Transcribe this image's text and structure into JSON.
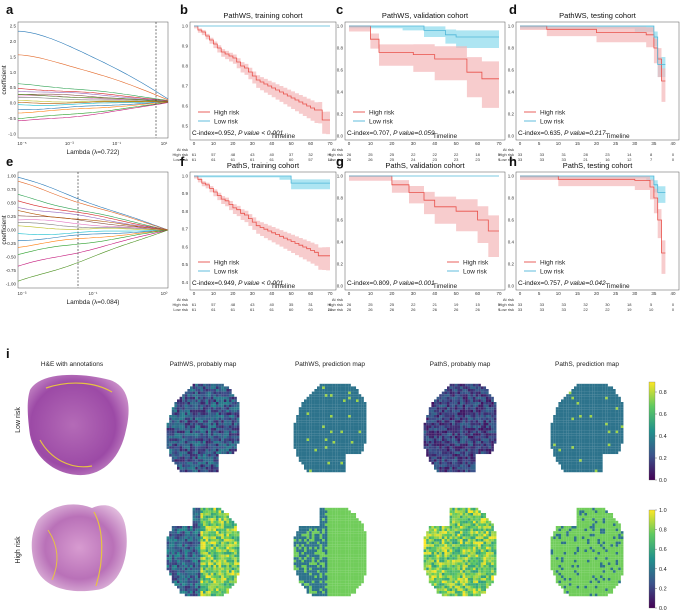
{
  "colors": {
    "high": "#e8504a",
    "high_band": "#f4b6b8",
    "low": "#4fb6d8",
    "low_band": "#9fe0f0",
    "frame": "#555555"
  },
  "lasso": [
    {
      "label": "a",
      "xlabel": "Lambda (λ=0.722)",
      "ylabel": "coefficient",
      "xticks": [
        "10⁻⁵",
        "10⁻³",
        "10⁻¹",
        "10¹"
      ],
      "yticks": [
        "2.5",
        "2.0",
        "1.5",
        "1.0",
        "0.5",
        "0.0",
        "-0.5",
        "-1.0"
      ],
      "ylim": [
        -1.2,
        2.6
      ],
      "vline_frac": 0.92
    },
    {
      "label": "e",
      "xlabel": "Lambda (λ=0.084)",
      "ylabel": "coefficient",
      "xticks": [
        "10⁻³",
        "10⁻¹",
        "10⁰"
      ],
      "yticks": [
        "1.00",
        "0.75",
        "0.50",
        "0.25",
        "0.00",
        "-0.25",
        "-0.50",
        "-0.75",
        "-1.00"
      ],
      "ylim": [
        -1.1,
        1.1
      ],
      "vline_frac": 0.4
    }
  ],
  "km": [
    {
      "label": "b",
      "title": "PathWS, training cohort",
      "cindex": "C-index=0.952, ",
      "p": "P value < 0.001",
      "xmax": 70,
      "xticks": [
        "0",
        "10",
        "20",
        "30",
        "40",
        "50",
        "60",
        "70"
      ],
      "yticks": [
        "1.0",
        "0.9",
        "0.8",
        "0.7",
        "0.6",
        "0.5"
      ],
      "ymin": 0.45,
      "timeline": "Timeline",
      "legend": [
        "High risk",
        "Low risk"
      ],
      "legend_pos": "lower-left",
      "cidx_pos": "bottom",
      "risk": {
        "head": "At risk",
        "high": [
          "61",
          "57",
          "48",
          "43",
          "40",
          "37",
          "32",
          "9"
        ],
        "low": [
          "61",
          "61",
          "61",
          "61",
          "61",
          "60",
          "57",
          "18"
        ]
      },
      "high": {
        "t": [
          0,
          2,
          4,
          6,
          8,
          10,
          12,
          14,
          16,
          18,
          20,
          22,
          24,
          26,
          28,
          30,
          32,
          34,
          36,
          38,
          40,
          42,
          44,
          46,
          48,
          50,
          52,
          54,
          56,
          58,
          60,
          62,
          64,
          66,
          68,
          70
        ],
        "s": [
          1,
          0.98,
          0.97,
          0.95,
          0.93,
          0.91,
          0.89,
          0.87,
          0.86,
          0.85,
          0.84,
          0.82,
          0.8,
          0.79,
          0.77,
          0.75,
          0.73,
          0.72,
          0.71,
          0.7,
          0.69,
          0.68,
          0.67,
          0.66,
          0.65,
          0.64,
          0.63,
          0.62,
          0.61,
          0.6,
          0.59,
          0.58,
          0.58,
          0.53,
          0.53,
          0.53
        ],
        "band": 0.06
      },
      "low": {
        "t": [
          0,
          70
        ],
        "s": [
          1,
          1
        ],
        "band": 0
      }
    },
    {
      "label": "c",
      "title": "PathWS, validation cohort",
      "cindex": "C-index=0.707, ",
      "p": "P value=0.059",
      "xmax": 70,
      "xticks": [
        "0",
        "10",
        "20",
        "30",
        "40",
        "50",
        "60",
        "70"
      ],
      "yticks": [
        "1.0",
        "0.8",
        "0.6",
        "0.4",
        "0.2",
        "0.0"
      ],
      "ymin": 0.0,
      "timeline": "Timeline",
      "legend": [
        "High risk",
        "Low risk"
      ],
      "legend_pos": "lower-left",
      "cidx_pos": "bottom",
      "risk": {
        "head": "At risk",
        "high": [
          "26",
          "25",
          "25",
          "22",
          "22",
          "22",
          "18",
          "5"
        ],
        "low": [
          "26",
          "26",
          "25",
          "24",
          "23",
          "23",
          "23",
          "9"
        ]
      },
      "high": {
        "t": [
          0,
          10,
          14,
          30,
          40,
          55,
          62,
          70
        ],
        "s": [
          1,
          0.88,
          0.76,
          0.74,
          0.7,
          0.58,
          0.52,
          0.52
        ],
        "band": 0.25
      },
      "low": {
        "t": [
          0,
          25,
          35,
          45,
          50,
          70
        ],
        "s": [
          1,
          1,
          0.96,
          0.92,
          0.9,
          0.9
        ],
        "band": 0.1
      }
    },
    {
      "label": "d",
      "title": "PathWS, testing cohort",
      "cindex": "C-index=0.635, ",
      "p": "P value=0.217",
      "xmax": 40,
      "xticks": [
        "0",
        "5",
        "10",
        "15",
        "20",
        "25",
        "30",
        "35",
        "40"
      ],
      "yticks": [
        "1.0",
        "0.8",
        "0.6",
        "0.4",
        "0.2",
        "0.0"
      ],
      "ymin": 0.0,
      "timeline": "Timeline",
      "legend": [
        "High risk",
        "Low risk"
      ],
      "legend_pos": "lower-left",
      "cidx_pos": "bottom",
      "risk": {
        "head": "At risk",
        "high": [
          "33",
          "33",
          "31",
          "28",
          "23",
          "14",
          "8",
          "0"
        ],
        "low": [
          "33",
          "33",
          "33",
          "21",
          "16",
          "12",
          "7",
          "0"
        ]
      },
      "high": {
        "t": [
          0,
          7,
          20,
          33,
          35,
          36,
          37,
          38
        ],
        "s": [
          1,
          0.97,
          0.94,
          0.92,
          0.8,
          0.7,
          0.5,
          0.5
        ],
        "band": 0.18
      },
      "low": {
        "t": [
          0,
          30,
          35,
          36,
          38
        ],
        "s": [
          1,
          1,
          0.9,
          0.65,
          0.65
        ],
        "band": 0.12
      }
    },
    {
      "label": "f",
      "title": "PathS, training cohort",
      "cindex": "C-index=0.949, ",
      "p": "P value < 0.001",
      "xmax": 70,
      "xticks": [
        "0",
        "10",
        "20",
        "30",
        "40",
        "50",
        "60",
        "70"
      ],
      "yticks": [
        "1.0",
        "0.9",
        "0.8",
        "0.7",
        "0.6",
        "0.5",
        "0.4"
      ],
      "ymin": 0.38,
      "timeline": "Timeline",
      "legend": [
        "High risk",
        "Low risk"
      ],
      "legend_pos": "lower-left",
      "cidx_pos": "bottom",
      "risk": {
        "head": "At risk",
        "high": [
          "61",
          "57",
          "48",
          "43",
          "40",
          "35",
          "31",
          "6"
        ],
        "low": [
          "61",
          "61",
          "61",
          "61",
          "61",
          "60",
          "60",
          "20"
        ]
      },
      "high": {
        "t": [
          0,
          2,
          4,
          6,
          8,
          10,
          12,
          14,
          16,
          18,
          20,
          22,
          24,
          26,
          28,
          30,
          32,
          34,
          36,
          38,
          40,
          42,
          44,
          46,
          48,
          50,
          52,
          54,
          56,
          58,
          60,
          62,
          64,
          66,
          68,
          70
        ],
        "s": [
          1,
          0.98,
          0.96,
          0.95,
          0.93,
          0.91,
          0.89,
          0.87,
          0.86,
          0.84,
          0.82,
          0.81,
          0.79,
          0.78,
          0.76,
          0.74,
          0.72,
          0.71,
          0.7,
          0.69,
          0.68,
          0.67,
          0.66,
          0.65,
          0.64,
          0.63,
          0.62,
          0.61,
          0.6,
          0.59,
          0.58,
          0.57,
          0.55,
          0.55,
          0.55,
          0.55
        ],
        "band": 0.07
      },
      "low": {
        "t": [
          0,
          44,
          50,
          70
        ],
        "s": [
          1,
          1,
          0.96,
          0.96
        ],
        "band": 0.04
      }
    },
    {
      "label": "g",
      "title": "PathS, validation cohort",
      "cindex": "C-index=0.809, ",
      "p": "P value=0.001",
      "xmax": 70,
      "xticks": [
        "0",
        "10",
        "20",
        "30",
        "40",
        "50",
        "60",
        "70"
      ],
      "yticks": [
        "1.0",
        "0.8",
        "0.6",
        "0.4",
        "0.2",
        "0.0"
      ],
      "ymin": 0.0,
      "timeline": "Timeline",
      "legend": [
        "High risk",
        "Low risk"
      ],
      "legend_pos": "lower-right",
      "cidx_pos": "bottom",
      "risk": {
        "head": "At risk",
        "high": [
          "26",
          "25",
          "25",
          "22",
          "21",
          "19",
          "15",
          "5"
        ],
        "low": [
          "26",
          "26",
          "26",
          "26",
          "26",
          "26",
          "26",
          "9"
        ]
      },
      "high": {
        "t": [
          0,
          20,
          28,
          35,
          40,
          50,
          60,
          65,
          70
        ],
        "s": [
          1,
          0.92,
          0.85,
          0.78,
          0.72,
          0.68,
          0.6,
          0.5,
          0.5
        ],
        "band": 0.22
      },
      "low": {
        "t": [
          0,
          70
        ],
        "s": [
          1,
          1
        ],
        "band": 0
      }
    },
    {
      "label": "h",
      "title": "PathS, testing cohort",
      "cindex": "C-index=0.757, ",
      "p": "P value=0.042",
      "xmax": 40,
      "xticks": [
        "0",
        "5",
        "10",
        "15",
        "20",
        "25",
        "30",
        "35",
        "40"
      ],
      "yticks": [
        "1.0",
        "0.8",
        "0.6",
        "0.4",
        "0.2",
        "0.0"
      ],
      "ymin": 0.0,
      "timeline": "Timeline",
      "legend": [
        "High risk",
        "Low risk"
      ],
      "legend_pos": "lower-left",
      "cidx_pos": "bottom",
      "risk": {
        "head": "At risk",
        "high": [
          "33",
          "33",
          "33",
          "32",
          "30",
          "18",
          "5",
          "0"
        ],
        "low": [
          "33",
          "33",
          "33",
          "22",
          "22",
          "19",
          "10",
          "0"
        ]
      },
      "high": {
        "t": [
          0,
          10,
          30,
          34,
          35,
          36,
          37,
          38
        ],
        "s": [
          1,
          0.97,
          0.96,
          0.9,
          0.8,
          0.6,
          0.3,
          0.3
        ],
        "band": 0.18
      },
      "low": {
        "t": [
          0,
          33,
          35,
          36,
          38
        ],
        "s": [
          1,
          1,
          0.92,
          0.85,
          0.85
        ],
        "band": 0.1
      }
    }
  ],
  "panel_i": {
    "label": "i",
    "columns": [
      "H&E with annotations",
      "PathWS, probably map",
      "PathWS, prediction map",
      "PathS, probably map",
      "PathS, prediction map"
    ],
    "rows": [
      "Low risk",
      "High risk"
    ],
    "colorbar_low": [
      "0.8",
      "0.6",
      "0.4",
      "0.2",
      "0.0"
    ],
    "colorbar_high": [
      "1.0",
      "0.8",
      "0.6",
      "0.4",
      "0.2",
      "0.0"
    ]
  }
}
